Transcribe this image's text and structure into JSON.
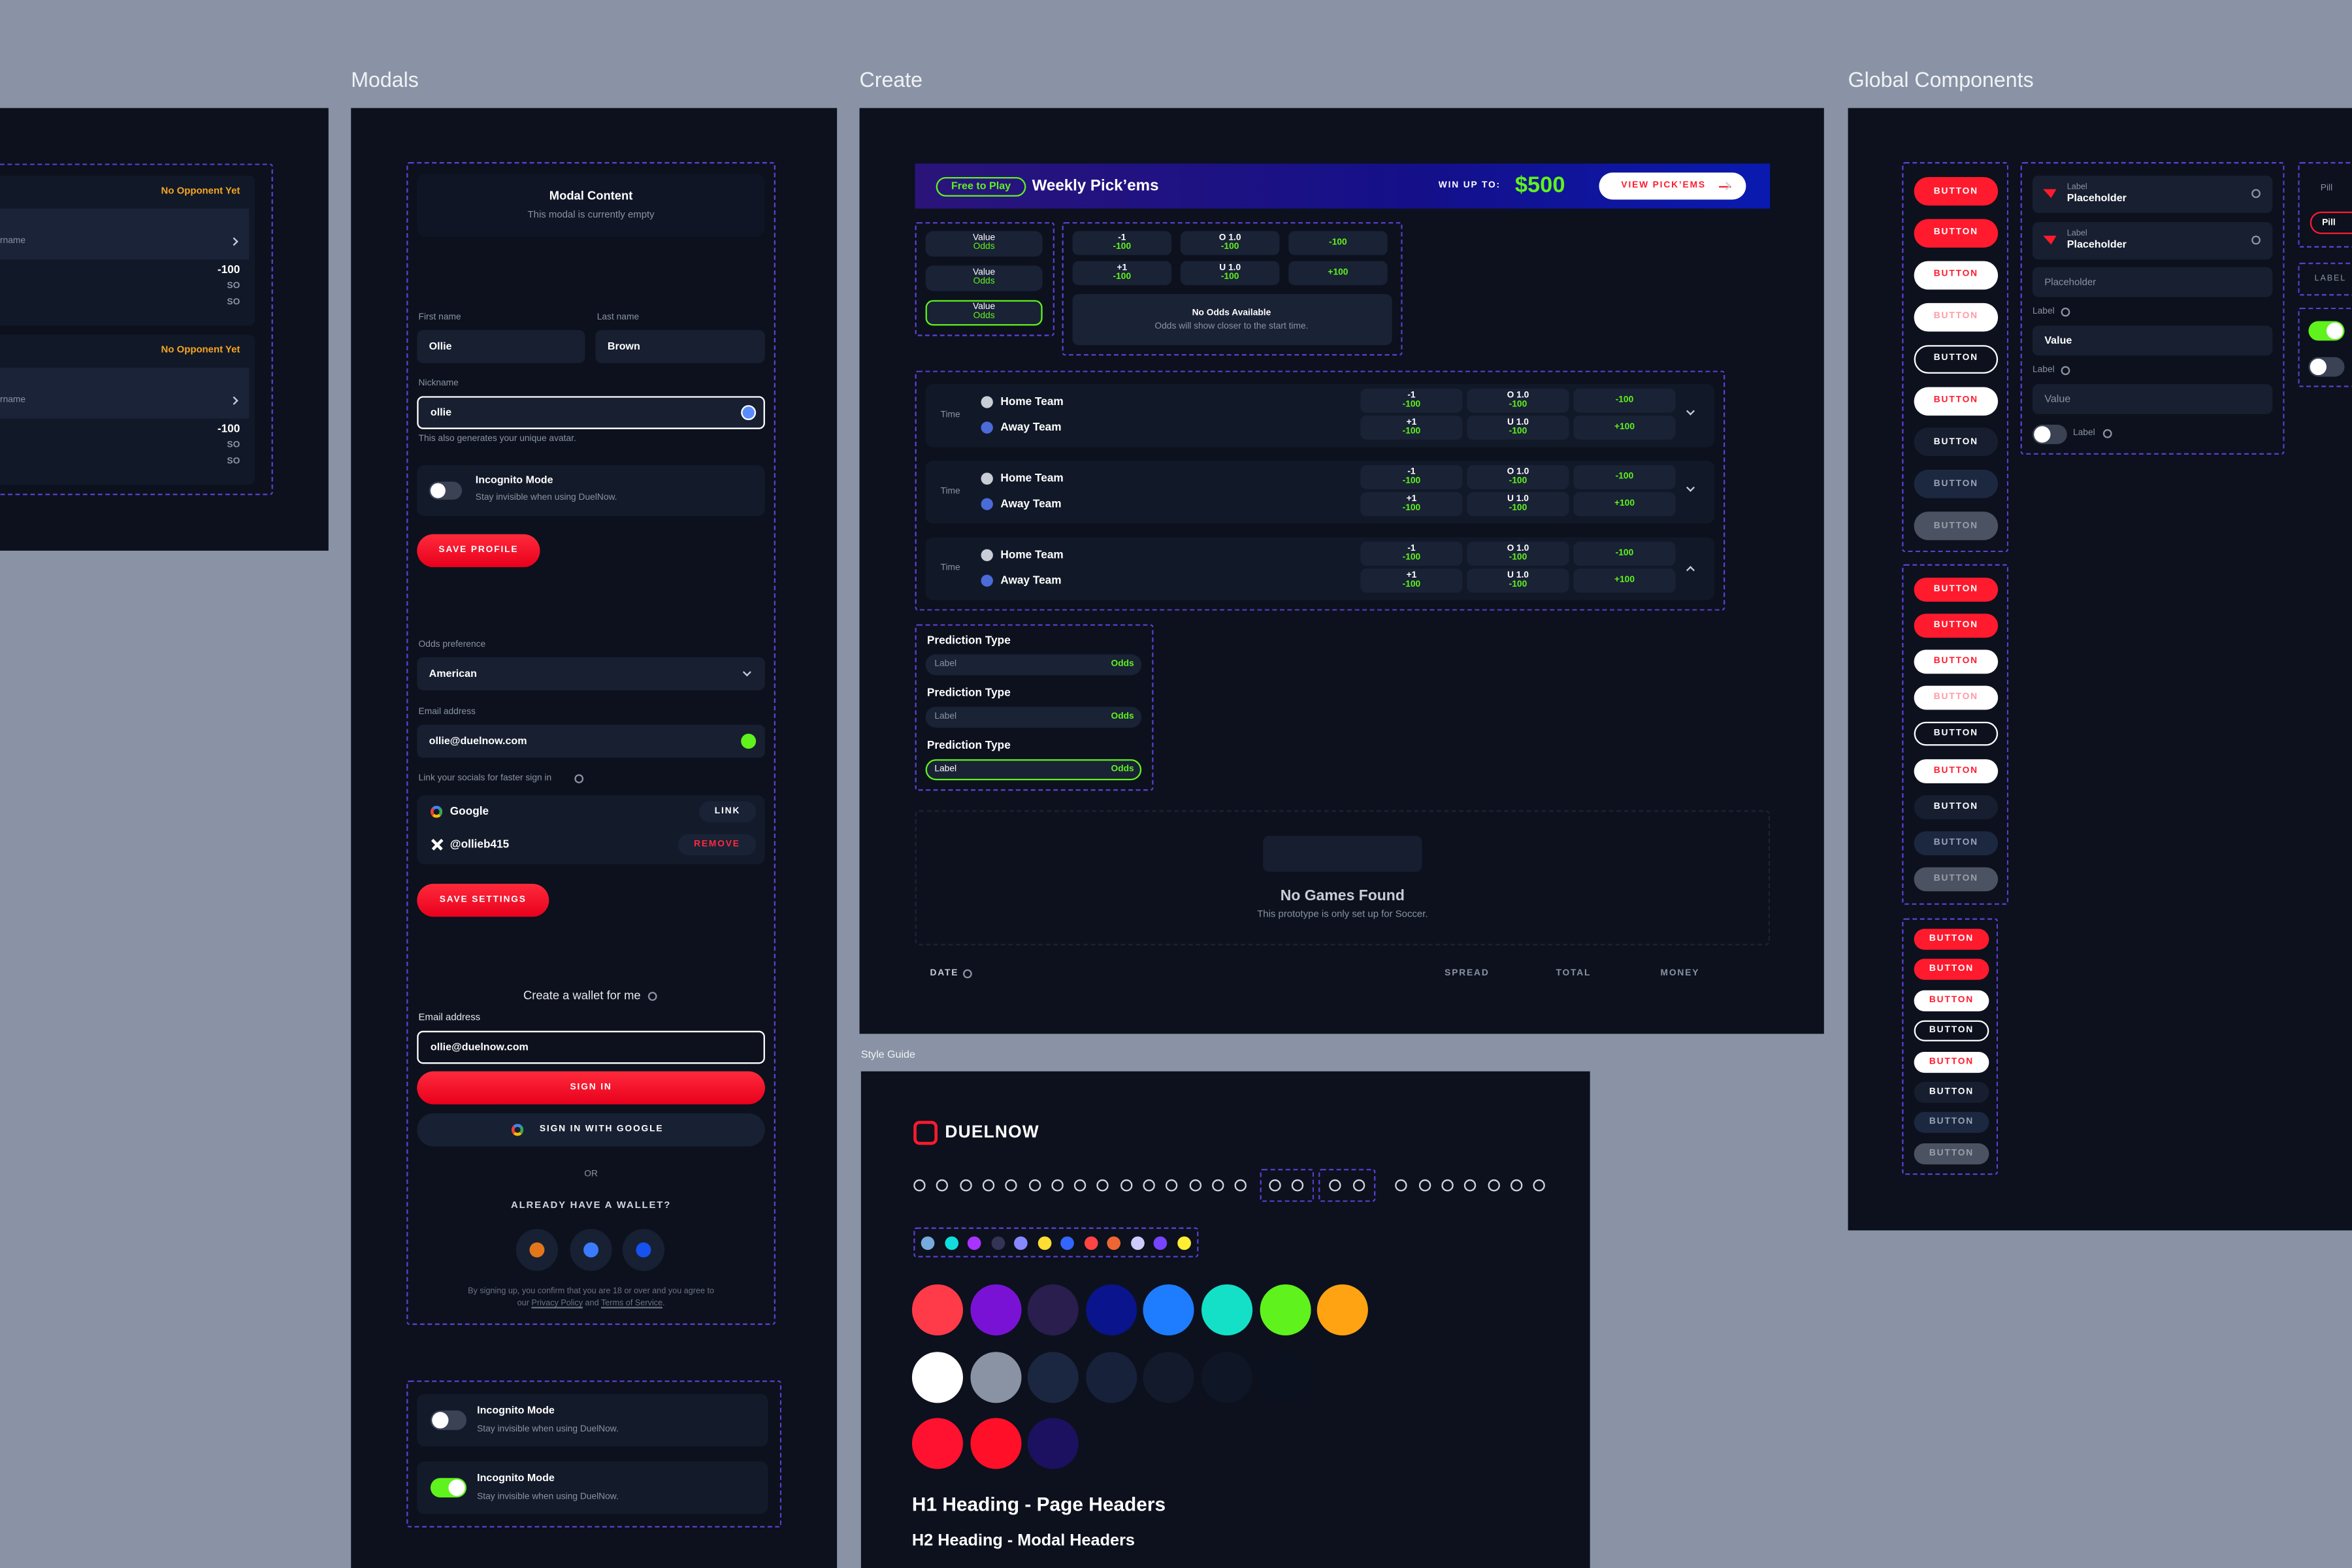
{
  "canvas_labels": {
    "modals": "Modals",
    "create": "Create",
    "global": "Global Components",
    "style_guide": "Style Guide"
  },
  "feed": {
    "cards": [
      {
        "status": "No Opponent Yet",
        "user": "rname",
        "odds": [
          "-100",
          "SO",
          "SO"
        ]
      },
      {
        "status": "No Opponent Yet",
        "user": "rname",
        "odds": [
          "-100",
          "SO",
          "SO"
        ]
      }
    ]
  },
  "modal": {
    "title": "Modal Content",
    "subtitle": "This modal is currently empty",
    "first_name_label": "First name",
    "first_name": "Ollie",
    "last_name_label": "Last name",
    "last_name": "Brown",
    "nickname_label": "Nickname",
    "nickname": "ollie",
    "nickname_hint": "This also generates your unique avatar.",
    "incognito_title": "Incognito Mode",
    "incognito_text": "Stay invisible when using DuelNow.",
    "save_profile": "SAVE PROFILE",
    "odds_label": "Odds preference",
    "odds_value": "American",
    "email_label": "Email address",
    "email": "ollie@duelnow.com",
    "socials_label": "Link your socials for faster sign in",
    "socials": [
      {
        "name": "Google",
        "action": "LINK"
      },
      {
        "name": "@ollieb415",
        "action": "REMOVE"
      }
    ],
    "save_settings": "SAVE SETTINGS",
    "wallet_title": "Create a wallet for me",
    "wallet_email_label": "Email address",
    "wallet_email": "ollie@duelnow.com",
    "sign_in": "SIGN IN",
    "google_sign_in": "SIGN IN WITH GOOGLE",
    "or": "OR",
    "have_wallet": "ALREADY HAVE A WALLET?",
    "terms": {
      "text": "By signing up, you confirm that you are 18 or over and you agree to our",
      "privacy": "Privacy Policy",
      "and": "and",
      "tos": "Terms of Service",
      "end": "."
    },
    "toggle_cards": [
      {
        "title": "Incognito Mode",
        "text": "Stay invisible when using DuelNow.",
        "on": false
      },
      {
        "title": "Incognito Mode",
        "text": "Stay invisible when using DuelNow.",
        "on": true
      }
    ]
  },
  "create": {
    "banner": {
      "tag": "Free to Play",
      "title": "Weekly Pick’ems",
      "win_label": "WIN UP TO:",
      "prize": "$500",
      "cta": "VIEW PICK’EMS"
    },
    "value_odds": [
      {
        "value": "Value",
        "odds": "Odds"
      },
      {
        "value": "Value",
        "odds": "Odds"
      },
      {
        "value": "Value",
        "odds": "Odds"
      }
    ],
    "odds_cells": [
      [
        "-1",
        "-100"
      ],
      [
        "O 1.0",
        "-100"
      ],
      [
        "-100"
      ],
      [
        "+1",
        "-100"
      ],
      [
        "U 1.0",
        "-100"
      ],
      [
        "+100"
      ]
    ],
    "no_odds": {
      "title": "No Odds Available",
      "text": "Odds will show closer to the start time."
    },
    "games": [
      {
        "time": "Time",
        "home": "Home Team",
        "away": "Away Team",
        "odds": [
          [
            "-1",
            "-100"
          ],
          [
            "O 1.0",
            "-100"
          ],
          [
            "-100"
          ],
          [
            "+1",
            "-100"
          ],
          [
            "U 1.0",
            "-100"
          ],
          [
            "+100"
          ]
        ]
      },
      {
        "time": "Time",
        "home": "Home Team",
        "away": "Away Team",
        "odds": [
          [
            "-1",
            "-100"
          ],
          [
            "O 1.0",
            "-100"
          ],
          [
            "-100"
          ],
          [
            "+1",
            "-100"
          ],
          [
            "U 1.0",
            "-100"
          ],
          [
            "+100"
          ]
        ]
      },
      {
        "time": "Time",
        "home": "Home Team",
        "away": "Away Team",
        "odds": [
          [
            "-1",
            "-100"
          ],
          [
            "O 1.0",
            "-100"
          ],
          [
            "-100"
          ],
          [
            "+1",
            "-100"
          ],
          [
            "U 1.0",
            "-100"
          ],
          [
            "+100"
          ]
        ]
      }
    ],
    "predictions": [
      {
        "title": "Prediction Type",
        "label": "Label",
        "odds": "Odds"
      },
      {
        "title": "Prediction Type",
        "label": "Label",
        "odds": "Odds"
      },
      {
        "title": "Prediction Type",
        "label": "Label",
        "odds": "Odds"
      }
    ],
    "no_games": {
      "title": "No Games Found",
      "text": "This prototype is only set up for Soccer."
    },
    "columns": {
      "date": "DATE",
      "spread": "SPREAD",
      "total": "TOTAL",
      "money": "MONEY"
    }
  },
  "style_guide": {
    "brand": "DUELNOW",
    "swatches": [
      [
        "#ff3b4a",
        "#7a12d6",
        "#2a1e4e",
        "#0a148c",
        "#1e7cff",
        "#14e0c8",
        "#5ff21c",
        "#ffa312"
      ],
      [
        "#ffffff",
        "#8a93a3",
        "#1b2740",
        "#18213a",
        "#121a2c",
        "#0f1626",
        "#0c1120"
      ],
      [
        "#ff1230",
        "#ff1028",
        "#1c1160"
      ]
    ],
    "h1": "H1 Heading - Page Headers",
    "h2": "H2 Heading - Modal Headers"
  },
  "components": {
    "button_groups": [
      {
        "labels": [
          "BUTTON",
          "BUTTON",
          "BUTTON",
          "BUTTON",
          "BUTTON",
          "BUTTON",
          "BUTTON",
          "BUTTON",
          "BUTTON"
        ]
      },
      {
        "labels": [
          "BUTTON",
          "BUTTON",
          "BUTTON",
          "BUTTON",
          "BUTTON",
          "BUTTON",
          "BUTTON",
          "BUTTON",
          "BUTTON"
        ]
      },
      {
        "labels": [
          "BUTTON",
          "BUTTON",
          "BUTTON",
          "BUTTON",
          "BUTTON",
          "BUTTON",
          "BUTTON",
          "BUTTON"
        ]
      }
    ],
    "icon_fields": [
      {
        "label": "Label",
        "placeholder": "Placeholder"
      },
      {
        "label": "Label",
        "placeholder": "Placeholder"
      }
    ],
    "placeholder": "Placeholder",
    "fields": [
      {
        "label": "Label",
        "value": "Value"
      },
      {
        "label": "Label",
        "value": "Value"
      }
    ],
    "toggle_label": "Label",
    "pill_title": "Pill",
    "pill": "Pill",
    "tag": "LABEL"
  }
}
